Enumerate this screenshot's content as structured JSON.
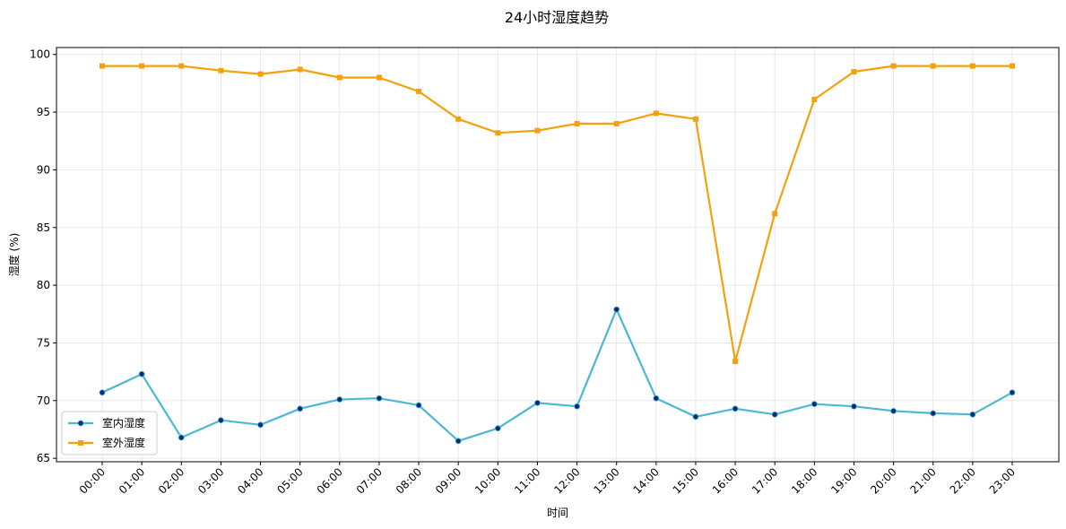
{
  "chart_data": {
    "type": "line",
    "title": "24小时湿度趋势",
    "xlabel": "时间",
    "ylabel": "湿度 (%)",
    "ylim": [
      64.7,
      100.6
    ],
    "yticks": [
      65,
      70,
      75,
      80,
      85,
      90,
      95,
      100
    ],
    "grid": true,
    "legend_position": "lower-left",
    "categories": [
      "00:00",
      "01:00",
      "02:00",
      "03:00",
      "04:00",
      "05:00",
      "06:00",
      "07:00",
      "08:00",
      "09:00",
      "10:00",
      "11:00",
      "12:00",
      "13:00",
      "14:00",
      "15:00",
      "16:00",
      "17:00",
      "18:00",
      "19:00",
      "20:00",
      "21:00",
      "22:00",
      "23:00"
    ],
    "series": [
      {
        "name": "室内湿度",
        "color": "#4bb8d4",
        "marker": "circle",
        "marker_color": "#0a2a7a",
        "values": [
          70.7,
          72.3,
          66.8,
          68.3,
          67.9,
          69.3,
          70.1,
          70.2,
          69.6,
          66.5,
          67.6,
          69.8,
          69.5,
          77.9,
          70.2,
          68.6,
          69.3,
          68.8,
          69.7,
          69.5,
          69.1,
          68.9,
          68.8,
          70.7
        ]
      },
      {
        "name": "室外湿度",
        "color": "#f5a10d",
        "marker": "square",
        "marker_color": "#f5a10d",
        "values": [
          99.0,
          99.0,
          99.0,
          98.6,
          98.3,
          98.7,
          98.0,
          98.0,
          96.8,
          94.4,
          93.2,
          93.4,
          94.0,
          94.0,
          94.9,
          94.4,
          73.4,
          86.2,
          96.1,
          98.5,
          99.0,
          99.0,
          99.0,
          99.0
        ]
      }
    ]
  }
}
